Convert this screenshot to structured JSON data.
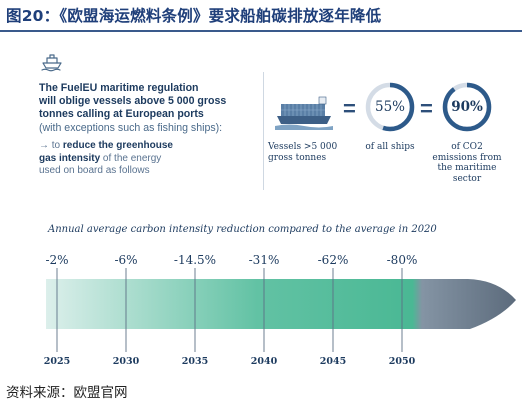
{
  "figure": {
    "title": "图20：《欧盟海运燃料条例》要求船舶碳排放逐年降低",
    "source": "资料来源：欧盟官网"
  },
  "regulation": {
    "line1_bold": "The FuelEU maritime regulation",
    "line2_bold": "will oblige vessels above 5 000 gross",
    "line3_bold": "tonnes calling at European ports",
    "line4": "(with exceptions such as fishing ships):",
    "arrow": "→",
    "to_text": "to ",
    "reduce_bold": "reduce the greenhouse",
    "gas_bold": "gas intensity",
    "of_text": " of the energy",
    "used_text": "used on board as follows"
  },
  "stats": {
    "vessels_caption_line1": "Vessels  >5 000",
    "vessels_caption_line2": "gross tonnes",
    "equals": "=",
    "share_all_ships": "55%",
    "share_all_ships_caption": "of all ships",
    "share_emissions": "90%",
    "share_emissions_caption_line1": "of CO2",
    "share_emissions_caption_line2": "emissions from",
    "share_emissions_caption_line3": "the maritime",
    "share_emissions_caption_line4": "sector"
  },
  "colors": {
    "navy": "#1c3a5e",
    "title_blue": "#1f3f7a",
    "donut_track": "#d4dce6",
    "donut_fill": "#2d5a8a"
  },
  "chart_data": {
    "type": "bar",
    "title": "Annual average carbon intensity reduction compared to the average in 2020",
    "categories": [
      "2025",
      "2030",
      "2035",
      "2040",
      "2045",
      "2050"
    ],
    "values": [
      -2,
      -6,
      -14.5,
      -31,
      -62,
      -80
    ],
    "value_labels": [
      "-2%",
      "-6%",
      "-14.5%",
      "-31%",
      "-62%",
      "-80%"
    ]
  }
}
